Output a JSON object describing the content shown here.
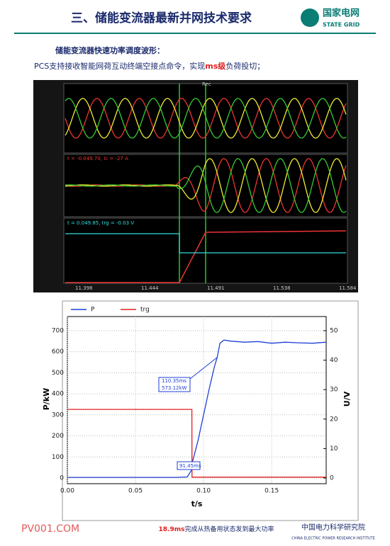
{
  "header": {
    "title": "三、储能变流器最新并网技术要求",
    "logo_cn": "国家电网",
    "logo_en": "STATE GRID"
  },
  "subtitle": "储能变流器快速功率调度波形：",
  "description": {
    "before": "PCS支持接收智能网荷互动终端空接点命令，实现",
    "highlight": "ms级",
    "after": "负荷投切；"
  },
  "scope": {
    "marker": "Rec",
    "panel2_readout": "t = -0.049.70, Ic = -27 A",
    "panel3_readout": "t = 0.049.85, trg = -0.03 V",
    "time_labels": [
      "11.398",
      "11.444",
      "11.491",
      "11.538",
      "11.584"
    ]
  },
  "chart_data": {
    "type": "line",
    "x_label": "t/s",
    "y_label": "P/kW",
    "y2_label": "U/V",
    "x": [
      0,
      0.02,
      0.04,
      0.06,
      0.08,
      0.088,
      0.0914,
      0.0915,
      0.092,
      0.096,
      0.1,
      0.104,
      0.108,
      0.11,
      0.112,
      0.115,
      0.12,
      0.13,
      0.14,
      0.15,
      0.16,
      0.17,
      0.18,
      0.19
    ],
    "series": [
      {
        "name": "P",
        "color": "#1f3fd6",
        "values": [
          3,
          3,
          3,
          3,
          3,
          5,
          40,
          45,
          80,
          180,
          300,
          420,
          530,
          573,
          640,
          655,
          650,
          645,
          648,
          640,
          645,
          642,
          640,
          645
        ]
      },
      {
        "name": "trg",
        "color": "#e02020",
        "axis": "y2",
        "values": [
          23.3,
          23.3,
          23.3,
          23.3,
          23.3,
          23.3,
          23.3,
          0.3,
          0.3,
          0.3,
          0.3,
          0.3,
          0.3,
          0.3,
          0.3,
          0.3,
          0.3,
          0.3,
          0.3,
          0.3,
          0.3,
          0.3,
          0.3,
          0.3
        ]
      }
    ],
    "xlim": [
      0,
      0.19
    ],
    "xticks": [
      {
        "value": 0,
        "label": "0.00"
      },
      {
        "value": 0.05,
        "label": "0.05"
      },
      {
        "value": 0.1,
        "label": "0.10"
      },
      {
        "value": 0.15,
        "label": "0.15"
      }
    ],
    "ylim": [
      0,
      750
    ],
    "yticks": [
      0,
      100,
      200,
      300,
      400,
      500,
      600,
      700
    ],
    "y2lim": [
      0,
      53.6
    ],
    "y2ticks": [
      0,
      10,
      20,
      30,
      40,
      50
    ],
    "grid": true,
    "legend": "top-left",
    "annotations": [
      "110.35ms",
      "573.12kW",
      "91.45ms"
    ]
  },
  "footer": {
    "site": "PV001.COM",
    "highlight": "18.9ms",
    "text": "完成从热备用状态发到最大功率",
    "org_cn": "中国电力科学研究院",
    "org_en": "CHINA ELECTRIC POWER RESEARCH INSTITUTE"
  }
}
